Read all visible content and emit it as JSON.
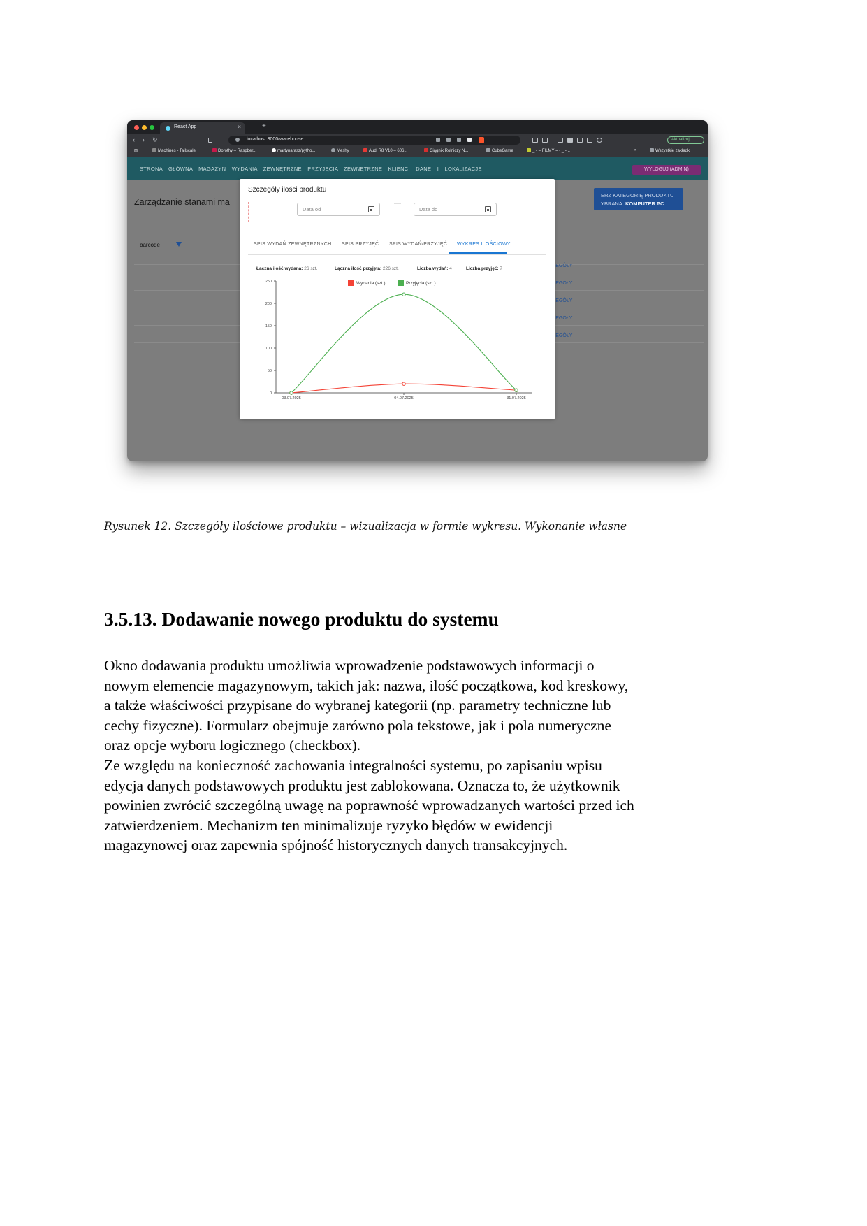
{
  "browser": {
    "tab_title": "React App",
    "tab_close": "×",
    "new_tab": "+",
    "url": "localhost:3000/warehouse",
    "update_label": "Aktualizuj",
    "bookmarks": [
      "Machines - Tailscale",
      "Dorothy – Raspber...",
      "martynarasz/pytho...",
      "Meshy",
      "Audi R8 V10 – 606...",
      "Ciągnik Rolniczy N...",
      "CubeGame",
      "_ - = FILMY = - _ -...",
      "»",
      "Wszystkie zakładki"
    ]
  },
  "app": {
    "nav_items": "STRONA GŁÓWNA   MAGAZYN   WYDANIA ZEWNĘTRZNE   PRZYJĘCIA ZEWNĘTRZNE   KLIENCI   DANE I LOKALIZACJE",
    "logout_label": "WYLOGUJ (ADMIN)",
    "page_title": "Zarządzanie stanami ma",
    "category_button_line1": "ERZ KATEGORIĘ PRODUKTU",
    "category_button_prefix": "YBRANA: ",
    "category_button_value": "KOMPUTER PC",
    "barcode_label": "barcode",
    "details_label": "SZCZEGÓŁY"
  },
  "modal": {
    "title": "Szczegóły ilości produktu",
    "date_from_placeholder": "Data od",
    "date_to_placeholder": "Data do",
    "tabs": [
      "SPIS WYDAŃ ZEWNĘTRZNYCH",
      "SPIS PRZYJĘĆ",
      "SPIS WYDAŃ/PRZYJĘĆ",
      "WYKRES ILOŚCIOWY"
    ],
    "active_tab": 3,
    "stats": {
      "issued_label": "Łączna ilość wydana:",
      "issued_value": "26 szt.",
      "received_label": "Łączna ilość przyjęta:",
      "received_value": "226 szt.",
      "issues_count_label": "Liczba wydań:",
      "issues_count_value": "4",
      "receipts_count_label": "Liczba przyjęć:",
      "receipts_count_value": "7"
    }
  },
  "chart_data": {
    "type": "line",
    "x": [
      "03.07.2025",
      "04.07.2025",
      "31.07.2025"
    ],
    "series": [
      {
        "name": "Wydania (szt.)",
        "color": "#f44336",
        "values": [
          0,
          20,
          6
        ]
      },
      {
        "name": "Przyjęcia (szt.)",
        "color": "#4caf50",
        "values": [
          0,
          220,
          6
        ]
      }
    ],
    "ylim": [
      0,
      250
    ],
    "yticks": [
      0,
      50,
      100,
      150,
      200,
      250
    ],
    "legend": "top-center",
    "grid": false
  },
  "document": {
    "caption": "Rysunek 12. Szczegóły ilościowe produktu – wizualizacja w formie wykresu. Wykonanie własne",
    "heading": "3.5.13. Dodawanie nowego produktu do systemu",
    "paragraph_lines": [
      "Okno dodawania produktu umożliwia wprowadzenie podstawowych informacji o",
      "nowym elemencie magazynowym, takich jak: nazwa, ilość początkowa, kod kreskowy,",
      "a także właściwości przypisane do wybranej kategorii (np. parametry techniczne lub",
      "cechy fizyczne). Formularz obejmuje zarówno pola tekstowe, jak i pola numeryczne",
      "oraz opcje wyboru logicznego (checkbox).",
      "Ze względu na konieczność zachowania integralności systemu, po zapisaniu wpisu",
      "edycja danych podstawowych produktu jest zablokowana. Oznacza to, że użytkownik",
      "powinien zwrócić szczególną uwagę na poprawność wprowadzanych wartości przed ich",
      "zatwierdzeniem. Mechanizm ten minimalizuje ryzyko błędów w ewidencji",
      "magazynowej oraz zapewnia spójność historycznych danych transakcyjnych."
    ]
  }
}
